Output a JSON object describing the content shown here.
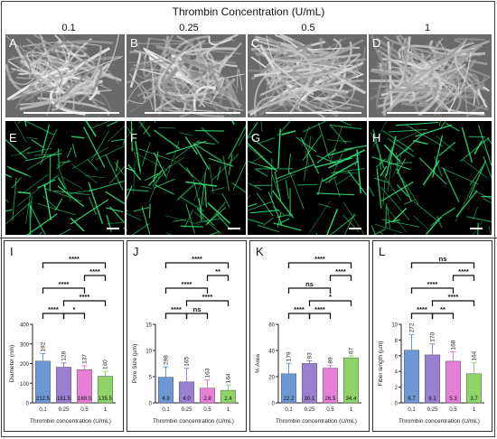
{
  "figure": {
    "title": "Thrombin Concentration (U/mL)",
    "columns": [
      "0.1",
      "0.25",
      "0.5",
      "1"
    ],
    "sem_panels": [
      "A",
      "B",
      "C",
      "D"
    ],
    "confocal_panels": [
      "E",
      "F",
      "G",
      "H"
    ]
  },
  "colors": {
    "blue": "#6d98d6",
    "purple": "#9b7fd1",
    "pink": "#e87fd6",
    "green": "#8fd466",
    "fiber_green": "#2ee07a"
  },
  "chart_data": [
    {
      "panel": "I",
      "type": "bar",
      "xlabel": "Thrombin concentration (U/mL)",
      "ylabel": "Diameter (nm)",
      "categories": [
        "0.1",
        "0.25",
        "0.5",
        "1"
      ],
      "values": [
        212.5,
        181.5,
        169.0,
        135.5
      ],
      "value_labels": [
        "212.5",
        "181.5",
        "169.0",
        "135.5"
      ],
      "n_labels": [
        "192",
        "128",
        "137",
        "140"
      ],
      "errors": [
        38,
        22,
        20,
        25
      ],
      "yticks": [
        "0",
        "100",
        "200",
        "300",
        "400"
      ],
      "ylim": [
        0,
        400
      ],
      "significance": [
        "****",
        "****",
        "****",
        "****",
        "*",
        "****"
      ]
    },
    {
      "panel": "J",
      "type": "bar",
      "xlabel": "Thrombin concentration (U/mL)",
      "ylabel": "Pore Size (µm)",
      "categories": [
        "0.1",
        "0.25",
        "0.5",
        "1"
      ],
      "values": [
        4.9,
        4.0,
        2.8,
        2.4
      ],
      "value_labels": [
        "4.9",
        "4.0",
        "2.8",
        "2.4"
      ],
      "n_labels": [
        "298",
        "165",
        "163",
        "164"
      ],
      "errors": [
        2.0,
        2.6,
        1.6,
        1.0
      ],
      "yticks": [
        "0",
        "5",
        "10",
        "15"
      ],
      "ylim": [
        0,
        15
      ],
      "significance": [
        "****",
        "****",
        "****",
        "**",
        "ns",
        "****"
      ]
    },
    {
      "panel": "K",
      "type": "bar",
      "xlabel": "Thrombin concentration (U/mL)",
      "ylabel": "% Area",
      "categories": [
        "0.1",
        "0.25",
        "0.5",
        "1"
      ],
      "values": [
        22.2,
        30.1,
        26.5,
        34.4
      ],
      "value_labels": [
        "22.2",
        "30.1",
        "26.5",
        "34.4"
      ],
      "n_labels": [
        "179",
        "93",
        "89",
        "87"
      ],
      "errors": [
        8,
        2,
        2,
        1.5
      ],
      "yticks": [
        "0",
        "20",
        "40",
        "60"
      ],
      "ylim": [
        0,
        60
      ],
      "significance": [
        "****",
        "*",
        "ns",
        "****",
        "****",
        "****"
      ]
    },
    {
      "panel": "L",
      "type": "bar",
      "xlabel": "Thrombin concentration (U/mL)",
      "ylabel": "Fiber length (µm)",
      "categories": [
        "0.1",
        "0.25",
        "0.5",
        "1"
      ],
      "values": [
        6.7,
        6.1,
        5.3,
        3.7
      ],
      "value_labels": [
        "6.7",
        "6.1",
        "5.3",
        "3.7"
      ],
      "n_labels": [
        "272",
        "170",
        "168",
        "164"
      ],
      "errors": [
        2.0,
        1.4,
        1.2,
        1.4
      ],
      "yticks": [
        "0",
        "2",
        "4",
        "6",
        "8",
        "10"
      ],
      "ylim": [
        0,
        10
      ],
      "significance": [
        "****",
        "****",
        "****",
        "****",
        "**",
        "ns"
      ]
    }
  ]
}
